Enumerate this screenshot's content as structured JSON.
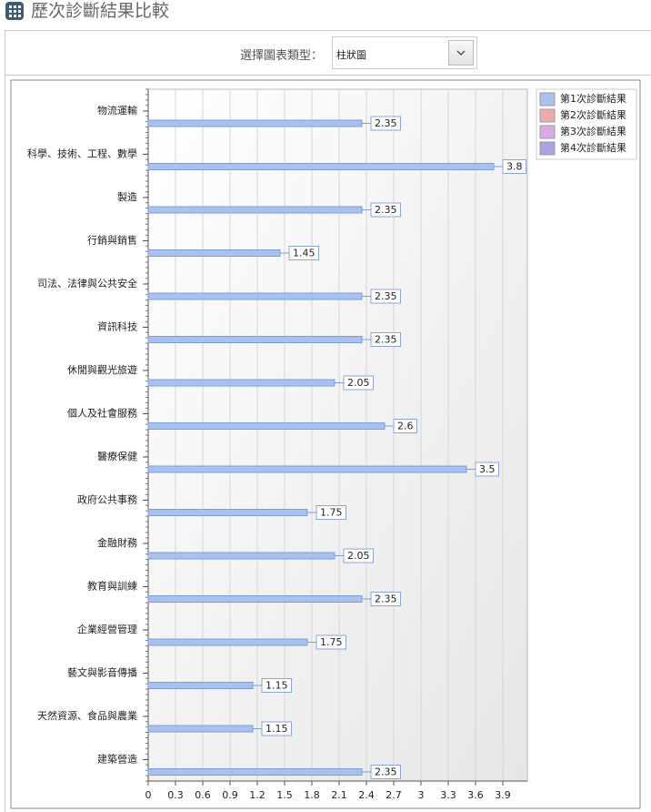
{
  "header": {
    "title": "歷次診斷結果比較"
  },
  "filter": {
    "label": "選擇圖表類型：",
    "selected": "柱狀圖"
  },
  "chart_data": {
    "type": "bar",
    "orientation": "horizontal",
    "categories": [
      "物流運輸",
      "科學、技術、工程、數學",
      "製造",
      "行銷與銷售",
      "司法、法律與公共安全",
      "資訊科技",
      "休閒與觀光旅遊",
      "個人及社會服務",
      "醫療保健",
      "政府公共事務",
      "金融財務",
      "教育與訓練",
      "企業經營管理",
      "藝文與影音傳播",
      "天然資源、食品與農業",
      "建築營造"
    ],
    "series": [
      {
        "name": "第1次診斷結果",
        "color": "#a9c1ee",
        "values": [
          2.35,
          3.8,
          2.35,
          1.45,
          2.35,
          2.35,
          2.05,
          2.6,
          3.5,
          1.75,
          2.05,
          2.35,
          1.75,
          1.15,
          1.15,
          2.35
        ]
      },
      {
        "name": "第2次診斷結果",
        "color": "#eeaab2",
        "values": [
          null,
          null,
          null,
          null,
          null,
          null,
          null,
          null,
          null,
          null,
          null,
          null,
          null,
          null,
          null,
          null
        ]
      },
      {
        "name": "第3次診斷結果",
        "color": "#d9aae4",
        "values": [
          null,
          null,
          null,
          null,
          null,
          null,
          null,
          null,
          null,
          null,
          null,
          null,
          null,
          null,
          null,
          null
        ]
      },
      {
        "name": "第4次診斷結果",
        "color": "#aaa4e4",
        "values": [
          null,
          null,
          null,
          null,
          null,
          null,
          null,
          null,
          null,
          null,
          null,
          null,
          null,
          null,
          null,
          null
        ]
      }
    ],
    "xlim": [
      0,
      4.17
    ],
    "xticks": [
      0,
      0.3,
      0.6,
      0.9,
      1.2,
      1.5,
      1.8,
      2.1,
      2.4,
      2.7,
      3,
      3.3,
      3.6,
      3.9
    ],
    "grid": true,
    "legend": "top-right"
  }
}
